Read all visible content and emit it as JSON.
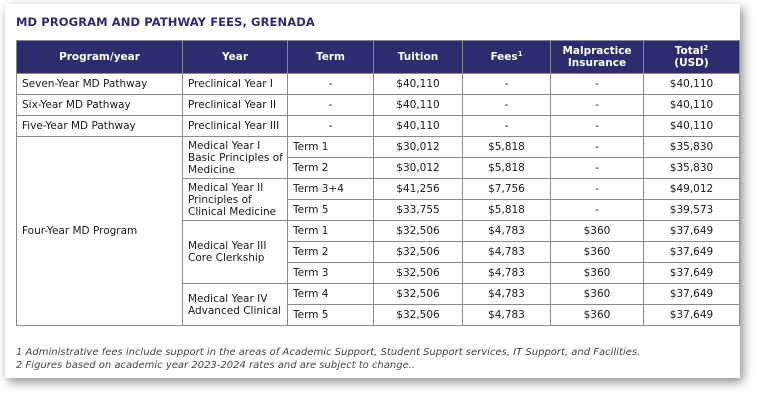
{
  "title": "MD PROGRAM AND PATHWAY FEES, GRENADA",
  "headers": {
    "program": "Program/year",
    "year": "Year",
    "term": "Term",
    "tuition": "Tuition",
    "fees": "Fees",
    "fees_sup": "1",
    "malpractice_1": "Malpractice",
    "malpractice_2": "Insurance",
    "total_1": "Total",
    "total_sup": "2",
    "total_2": "(USD)"
  },
  "pathways": [
    {
      "program": "Seven-Year MD Pathway",
      "year": "Preclinical Year I",
      "term": "-",
      "tuition": "$40,110",
      "fees": "-",
      "malpractice": "-",
      "total": "$40,110"
    },
    {
      "program": "Six-Year MD Pathway",
      "year": "Preclinical Year II",
      "term": "-",
      "tuition": "$40,110",
      "fees": "-",
      "malpractice": "-",
      "total": "$40,110"
    },
    {
      "program": "Five-Year MD Pathway",
      "year": "Preclinical Year III",
      "term": "-",
      "tuition": "$40,110",
      "fees": "-",
      "malpractice": "-",
      "total": "$40,110"
    }
  ],
  "four_year": {
    "program": "Four-Year MD Program",
    "year_groups": [
      {
        "line1": "Medical Year I",
        "line2": "Basic Principles of",
        "line3": "Medicine"
      },
      {
        "line1": "Medical Year II",
        "line2": "Principles of",
        "line3": "Clinical Medicine"
      },
      {
        "line1": "Medical Year III",
        "line2": "Core Clerkship"
      },
      {
        "line1": "Medical Year IV",
        "line2": "Advanced Clinical"
      }
    ],
    "terms": [
      {
        "term": "Term 1",
        "tuition": "$30,012",
        "fees": "$5,818",
        "malpractice": "-",
        "total": "$35,830"
      },
      {
        "term": "Term 2",
        "tuition": "$30,012",
        "fees": "$5,818",
        "malpractice": "-",
        "total": "$35,830"
      },
      {
        "term": "Term 3+4",
        "tuition": "$41,256",
        "fees": "$7,756",
        "malpractice": "-",
        "total": "$49,012"
      },
      {
        "term": "Term 5",
        "tuition": "$33,755",
        "fees": "$5,818",
        "malpractice": "-",
        "total": "$39,573"
      },
      {
        "term": "Term 1",
        "tuition": "$32,506",
        "fees": "$4,783",
        "malpractice": "$360",
        "total": "$37,649"
      },
      {
        "term": "Term 2",
        "tuition": "$32,506",
        "fees": "$4,783",
        "malpractice": "$360",
        "total": "$37,649"
      },
      {
        "term": "Term 3",
        "tuition": "$32,506",
        "fees": "$4,783",
        "malpractice": "$360",
        "total": "$37,649"
      },
      {
        "term": "Term 4",
        "tuition": "$32,506",
        "fees": "$4,783",
        "malpractice": "$360",
        "total": "$37,649"
      },
      {
        "term": "Term 5",
        "tuition": "$32,506",
        "fees": "$4,783",
        "malpractice": "$360",
        "total": "$37,649"
      }
    ]
  },
  "footnotes": [
    "1 Administrative fees include support in the areas of Academic Support, Student Support services, IT Support, and Facilities.",
    "2 Figures based on academic year 2023-2024 rates and are subject to change.."
  ]
}
